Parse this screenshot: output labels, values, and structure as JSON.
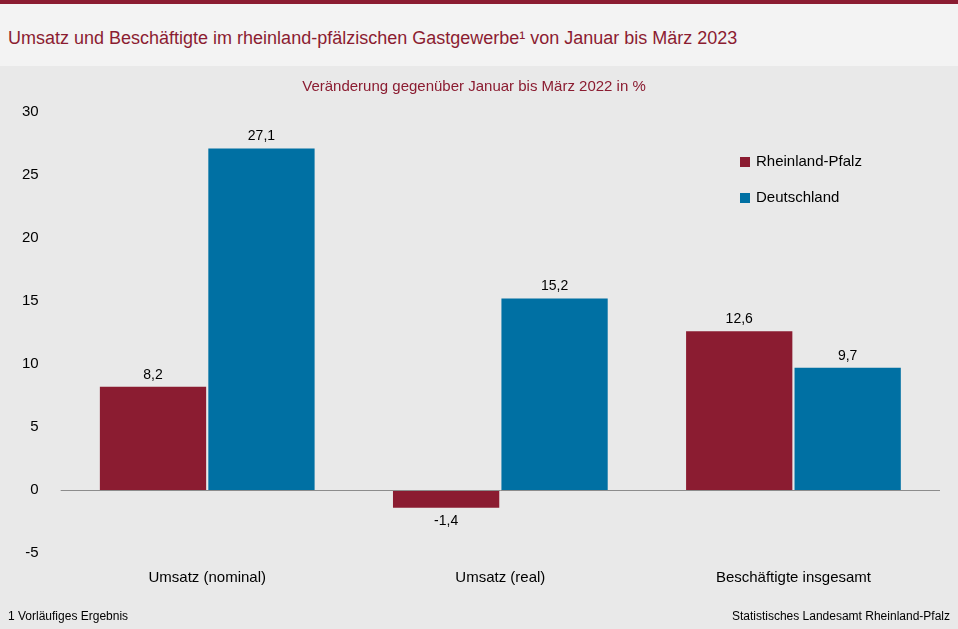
{
  "chart_data": {
    "type": "bar",
    "title": "Umsatz und Beschäftigte im rheinland-pfälzischen Gastgewerbe¹ von Januar bis März 2023",
    "subtitle": "Veränderung gegenüber Januar bis März 2022 in %",
    "footnote": "1 Vorläufiges Ergebnis",
    "source": "Statistisches Landesamt Rheinland-Pfalz",
    "categories": [
      "Umsatz (nominal)",
      "Umsatz (real)",
      "Beschäftigte insgesamt"
    ],
    "series": [
      {
        "name": "Rheinland-Pfalz",
        "color": "#8b1c31",
        "values": [
          8.2,
          -1.4,
          12.6
        ],
        "value_labels": [
          "8,2",
          "-1,4",
          "12,6"
        ]
      },
      {
        "name": "Deutschland",
        "color": "#0070a3",
        "values": [
          27.1,
          15.2,
          9.7
        ],
        "value_labels": [
          "27,1",
          "15,2",
          "9,7"
        ]
      }
    ],
    "ylim": [
      -5,
      30
    ],
    "yticks": [
      -5,
      0,
      5,
      10,
      15,
      20,
      25,
      30
    ],
    "grid": false,
    "legend": "top-right",
    "data_labels": true
  }
}
